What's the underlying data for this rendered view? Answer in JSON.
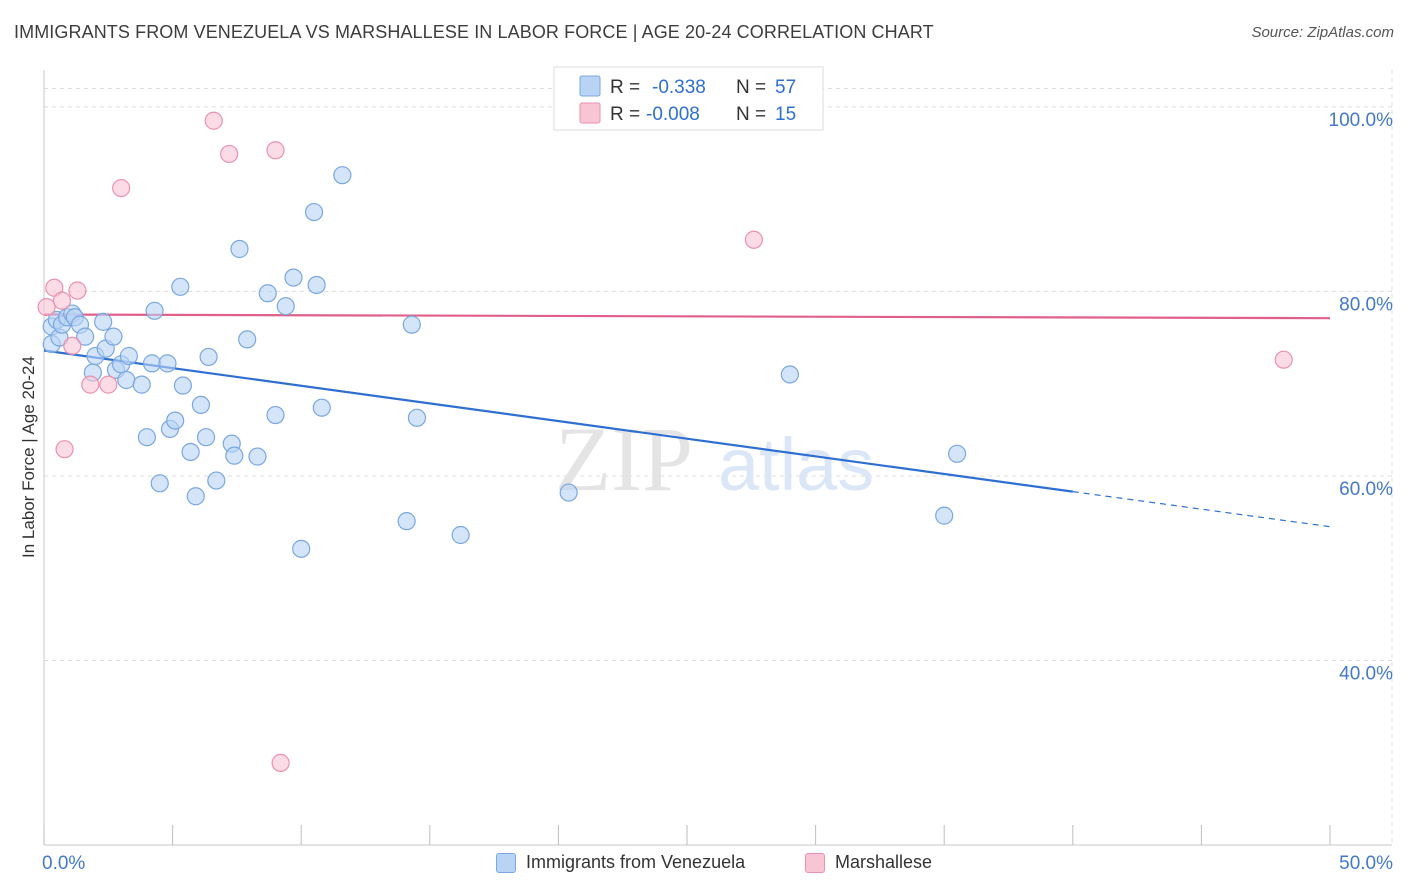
{
  "title": "IMMIGRANTS FROM VENEZUELA VS MARSHALLESE IN LABOR FORCE | AGE 20-24 CORRELATION CHART",
  "source": "Source: ZipAtlas.com",
  "watermark": {
    "zip": "ZIP",
    "atlas": "atlas"
  },
  "colors": {
    "blue_fill": "#b9d3f5",
    "blue_stroke": "#7aa7e0",
    "blue_line": "#2f6fd2",
    "pink_fill": "#f8c5d5",
    "pink_stroke": "#ea92ad",
    "pink_line": "#e0608a",
    "axis_text": "#4479c9",
    "grid": "#dcdcdc"
  },
  "legend_top": [
    {
      "r_label": "R =",
      "r_value": "-0.338",
      "n_label": "N =",
      "n_value": "57"
    },
    {
      "r_label": "R =",
      "r_value": "-0.008",
      "n_label": "N =",
      "n_value": "15"
    }
  ],
  "chart_data": {
    "type": "scatter",
    "title": "IMMIGRANTS FROM VENEZUELA VS MARSHALLESE IN LABOR FORCE | AGE 20-24 CORRELATION CHART",
    "xlabel": "",
    "ylabel": "In Labor Force | Age 20-24",
    "xlim": [
      0,
      50
    ],
    "ylim": [
      20,
      104
    ],
    "x_tick_labels": [
      {
        "value": 0,
        "label": "0.0%"
      },
      {
        "value": 50,
        "label": "50.0%"
      }
    ],
    "y_tick_labels": [
      {
        "value": 100,
        "label": "100.0%"
      },
      {
        "value": 80,
        "label": "80.0%"
      },
      {
        "value": 60,
        "label": "60.0%"
      },
      {
        "value": 40,
        "label": "40.0%"
      }
    ],
    "x_minor_ticks": [
      0,
      5,
      10,
      15,
      20,
      25,
      30,
      35,
      40,
      45,
      50
    ],
    "legend_position": "top-center",
    "series": [
      {
        "name": "Immigrants from Venezuela",
        "color": "blue",
        "r": -0.338,
        "n": 57,
        "trend": {
          "x0": 0,
          "y0": 73.6,
          "x1": 40,
          "y1": 58.3,
          "dash_to_x": 50,
          "dash_to_y": 54.5
        },
        "points": [
          [
            0.3,
            74.3
          ],
          [
            0.3,
            76.2
          ],
          [
            0.5,
            76.9
          ],
          [
            0.6,
            75.0
          ],
          [
            0.7,
            76.4
          ],
          [
            0.9,
            77.2
          ],
          [
            1.1,
            77.6
          ],
          [
            1.2,
            77.2
          ],
          [
            1.4,
            76.4
          ],
          [
            1.6,
            75.1
          ],
          [
            1.9,
            71.2
          ],
          [
            2.0,
            73.0
          ],
          [
            2.3,
            76.7
          ],
          [
            2.4,
            73.8
          ],
          [
            2.7,
            75.1
          ],
          [
            2.8,
            71.5
          ],
          [
            3.0,
            72.1
          ],
          [
            3.2,
            70.4
          ],
          [
            3.3,
            73.0
          ],
          [
            3.8,
            69.9
          ],
          [
            4.0,
            64.2
          ],
          [
            4.2,
            72.2
          ],
          [
            4.3,
            77.9
          ],
          [
            4.5,
            59.2
          ],
          [
            4.8,
            72.2
          ],
          [
            4.9,
            65.1
          ],
          [
            5.1,
            66.0
          ],
          [
            5.3,
            80.5
          ],
          [
            5.4,
            69.8
          ],
          [
            5.7,
            62.6
          ],
          [
            5.9,
            57.8
          ],
          [
            6.1,
            67.7
          ],
          [
            6.3,
            64.2
          ],
          [
            6.4,
            72.9
          ],
          [
            6.7,
            59.5
          ],
          [
            7.3,
            63.5
          ],
          [
            7.4,
            62.2
          ],
          [
            7.6,
            84.6
          ],
          [
            7.9,
            74.8
          ],
          [
            8.3,
            62.1
          ],
          [
            8.7,
            79.8
          ],
          [
            9.0,
            66.6
          ],
          [
            9.4,
            78.4
          ],
          [
            9.7,
            81.5
          ],
          [
            10.0,
            52.1
          ],
          [
            10.5,
            88.6
          ],
          [
            10.6,
            80.7
          ],
          [
            10.8,
            67.4
          ],
          [
            11.6,
            92.6
          ],
          [
            14.1,
            55.1
          ],
          [
            14.3,
            76.4
          ],
          [
            14.5,
            66.3
          ],
          [
            16.2,
            53.6
          ],
          [
            20.4,
            58.2
          ],
          [
            29.0,
            71.0
          ],
          [
            35.0,
            55.7
          ],
          [
            35.5,
            62.4
          ]
        ]
      },
      {
        "name": "Marshallese",
        "color": "pink",
        "r": -0.008,
        "n": 15,
        "trend": {
          "x0": 0,
          "y0": 77.5,
          "x1": 50,
          "y1": 77.1
        },
        "points": [
          [
            0.1,
            78.3
          ],
          [
            0.4,
            80.4
          ],
          [
            0.7,
            79.0
          ],
          [
            0.8,
            62.9
          ],
          [
            1.1,
            74.1
          ],
          [
            1.3,
            80.1
          ],
          [
            1.8,
            69.9
          ],
          [
            2.5,
            69.9
          ],
          [
            3.0,
            91.2
          ],
          [
            6.6,
            98.5
          ],
          [
            7.2,
            94.9
          ],
          [
            9.0,
            95.3
          ],
          [
            9.2,
            28.9
          ],
          [
            27.6,
            85.6
          ],
          [
            48.2,
            72.6
          ]
        ]
      }
    ]
  }
}
